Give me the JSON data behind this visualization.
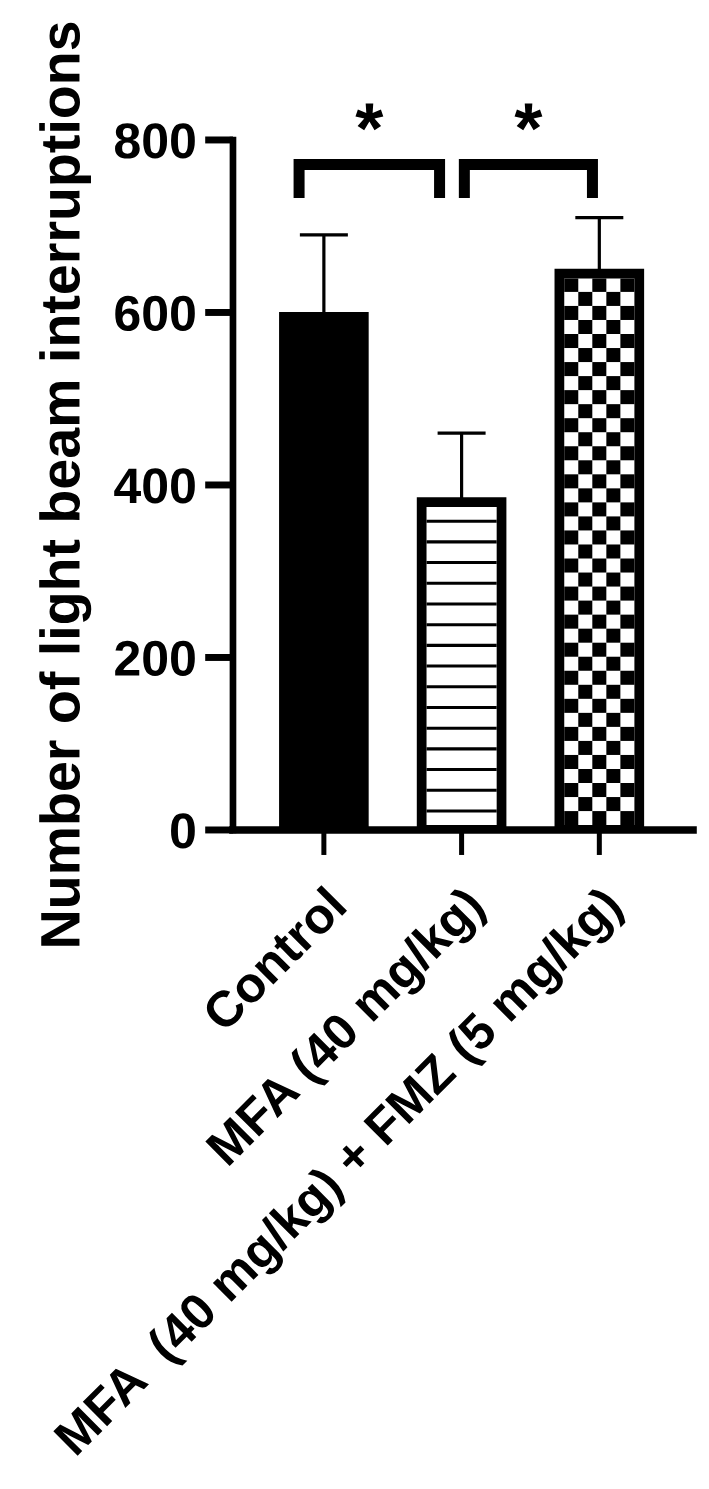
{
  "chart_data": {
    "type": "bar",
    "ylabel": "Number of light beam interruptions",
    "categories": [
      "Control",
      "MFA (40 mg/kg)",
      "MFA  (40 mg/kg) + FMZ (5 mg/kg)"
    ],
    "values": [
      595,
      380,
      645
    ],
    "colors": [
      "#000000",
      "#ffffff",
      "#ffffff"
    ],
    "errors": [
      [
        595,
        690
      ],
      [
        380,
        460
      ],
      [
        645,
        710
      ]
    ],
    "ylim": [
      0,
      800
    ],
    "yticks": [
      0,
      200,
      400,
      600,
      800
    ],
    "annotations": [
      "*",
      "*"
    ]
  }
}
